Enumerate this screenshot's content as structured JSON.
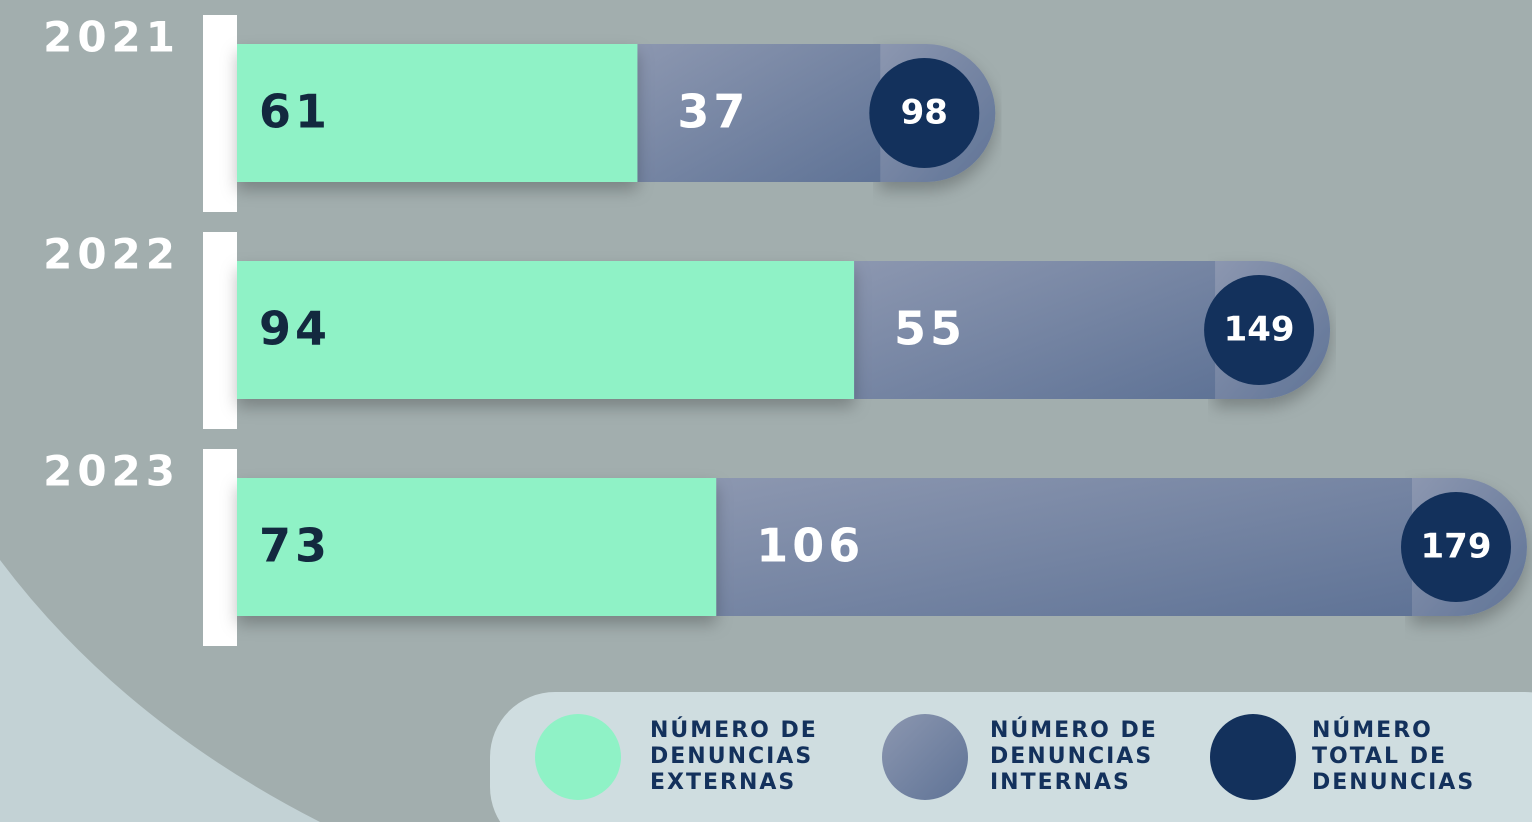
{
  "chart_data": {
    "type": "stacked-bar-horizontal",
    "categories": [
      "2021",
      "2022",
      "2023"
    ],
    "series": [
      {
        "name": "NÚMERO DE DENUNCIAS EXTERNAS",
        "color": "#8ff2c6",
        "values": [
          61,
          94,
          73
        ]
      },
      {
        "name": "NÚMERO DE DENUNCIAS INTERNAS",
        "color": "#7383a3",
        "values": [
          37,
          55,
          106
        ]
      },
      {
        "name": "NÚMERO TOTAL DE DENUNCIAS",
        "color": "#13315c",
        "values": [
          98,
          149,
          179
        ]
      }
    ]
  }
}
